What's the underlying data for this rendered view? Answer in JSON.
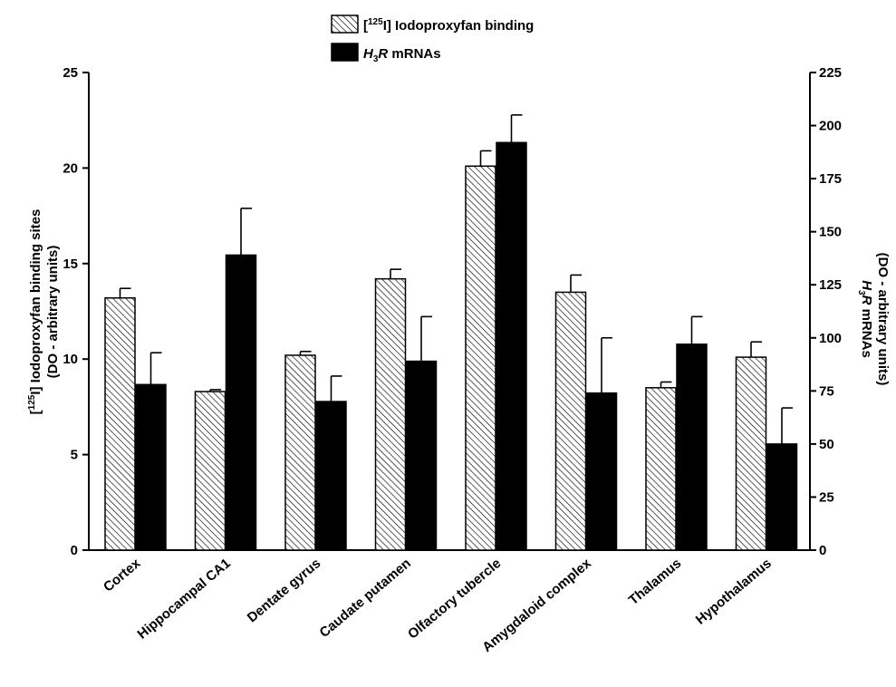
{
  "chart_data": {
    "type": "bar",
    "categories": [
      "Cortex",
      "Hippocampal CA1",
      "Dentate gyrus",
      "Caudate putamen",
      "Olfactory tubercle",
      "Amygdaloid complex",
      "Thalamus",
      "Hypothalamus"
    ],
    "series": [
      {
        "name": "[125I] Iodoproxyfan binding",
        "axis": "left",
        "pattern": "hatched",
        "values": [
          13.2,
          8.3,
          10.2,
          14.2,
          20.1,
          13.5,
          8.5,
          10.1
        ],
        "errors": [
          0.5,
          0.1,
          0.2,
          0.5,
          0.8,
          0.9,
          0.3,
          0.8
        ]
      },
      {
        "name": "H3R mRNAs",
        "axis": "right",
        "pattern": "solid",
        "values": [
          78,
          139,
          70,
          89,
          192,
          74,
          97,
          50
        ],
        "errors": [
          15,
          22,
          12,
          21,
          13,
          26,
          13,
          17
        ]
      }
    ],
    "left_axis": {
      "label_sup": "125",
      "label_line1_prefix": "[",
      "label_line1_suffix": "I] Iodoproxyfan binding sites",
      "label_line2": "(DO - arbitrary units)",
      "ylim": [
        0,
        25
      ],
      "ticks": [
        0,
        5,
        10,
        15,
        20,
        25
      ]
    },
    "right_axis": {
      "label_line1": "H3R mRNAs",
      "label_line2": "(DO - arbitrary units)",
      "ylim": [
        0,
        225
      ],
      "ticks": [
        0,
        25,
        50,
        75,
        100,
        125,
        150,
        175,
        200,
        225
      ]
    },
    "legend": {
      "placement": "top-center",
      "items": [
        {
          "prefix": "[",
          "sup": "125",
          "rest": "I] Iodoproxyfan binding",
          "pattern": "hatched"
        },
        {
          "italic": "H",
          "sub": "3",
          "italic2": "R",
          "rest": " mRNAs",
          "pattern": "solid"
        }
      ]
    },
    "colors": {
      "solid": "#000000",
      "hatch_fill": "#ffffff",
      "hatch_line": "#000000"
    }
  }
}
